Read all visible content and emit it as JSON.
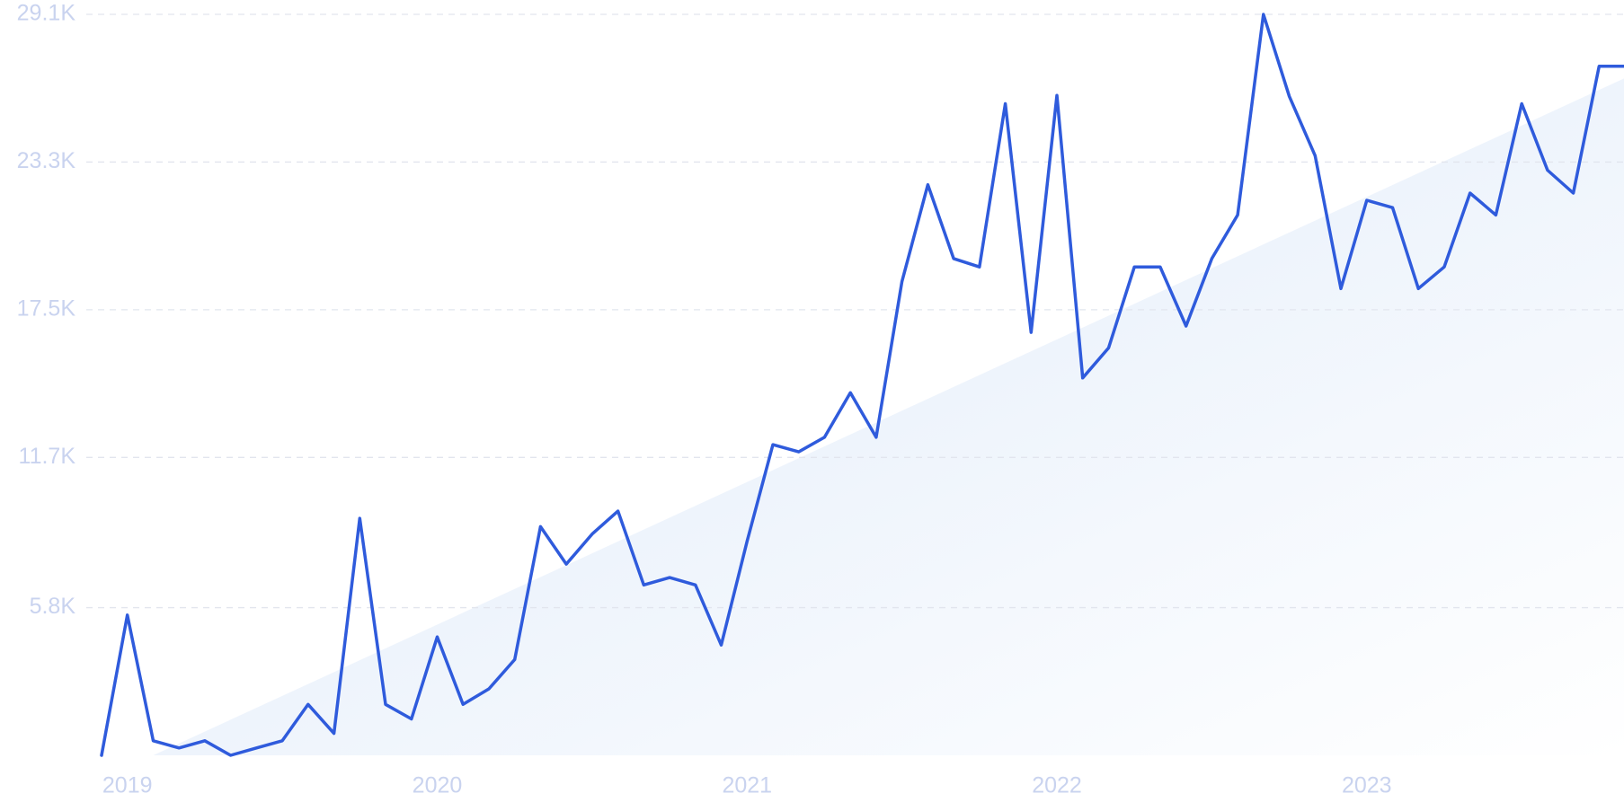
{
  "chart_data": {
    "type": "line",
    "x": [
      "2018-12",
      "2019-01",
      "2019-02",
      "2019-03",
      "2019-04",
      "2019-05",
      "2019-06",
      "2019-07",
      "2019-08",
      "2019-09",
      "2019-10",
      "2019-11",
      "2019-12",
      "2020-01",
      "2020-02",
      "2020-03",
      "2020-04",
      "2020-05",
      "2020-06",
      "2020-07",
      "2020-08",
      "2020-09",
      "2020-10",
      "2020-11",
      "2020-12",
      "2021-01",
      "2021-02",
      "2021-03",
      "2021-04",
      "2021-05",
      "2021-06",
      "2021-07",
      "2021-08",
      "2021-09",
      "2021-10",
      "2021-11",
      "2021-12",
      "2022-01",
      "2022-02",
      "2022-03",
      "2022-04",
      "2022-05",
      "2022-06",
      "2022-07",
      "2022-08",
      "2022-09",
      "2022-10",
      "2022-11",
      "2022-12",
      "2023-01",
      "2023-02",
      "2023-03",
      "2023-04",
      "2023-05",
      "2023-06",
      "2023-07",
      "2023-08",
      "2023-09",
      "2023-10",
      "2023-11"
    ],
    "series": [
      {
        "color": "#2f5bdc",
        "values": [
          0,
          5510,
          570,
          290,
          570,
          0,
          290,
          570,
          2000,
          860,
          9310,
          2000,
          1430,
          4650,
          2000,
          2610,
          3760,
          8980,
          7510,
          8690,
          9590,
          6690,
          6980,
          6690,
          4330,
          8410,
          12200,
          11920,
          12490,
          14240,
          12490,
          18610,
          22410,
          19510,
          19180,
          25590,
          16610,
          25920,
          14820,
          16000,
          19180,
          19180,
          16860,
          19510,
          21220,
          29100,
          25880,
          23550,
          18330,
          21800,
          21510,
          18330,
          19180,
          22080,
          21220,
          25590,
          22980,
          22080,
          27060,
          27060
        ]
      }
    ],
    "trend": {
      "x": [
        "2019-02",
        "2023-11"
      ],
      "values": [
        0,
        26600
      ],
      "color": "#e3eefb"
    },
    "ylim": [
      0,
      29100
    ],
    "yticks": [
      {
        "value": 5800,
        "label": "5.8K"
      },
      {
        "value": 11700,
        "label": "11.7K"
      },
      {
        "value": 17500,
        "label": "17.5K"
      },
      {
        "value": 23300,
        "label": "23.3K"
      },
      {
        "value": 29100,
        "label": "29.1K"
      }
    ],
    "xticks": [
      {
        "value": "2019-01",
        "label": "2019"
      },
      {
        "value": "2020-01",
        "label": "2020"
      },
      {
        "value": "2021-01",
        "label": "2021"
      },
      {
        "value": "2022-01",
        "label": "2022"
      },
      {
        "value": "2023-01",
        "label": "2023"
      }
    ],
    "grid": true
  }
}
